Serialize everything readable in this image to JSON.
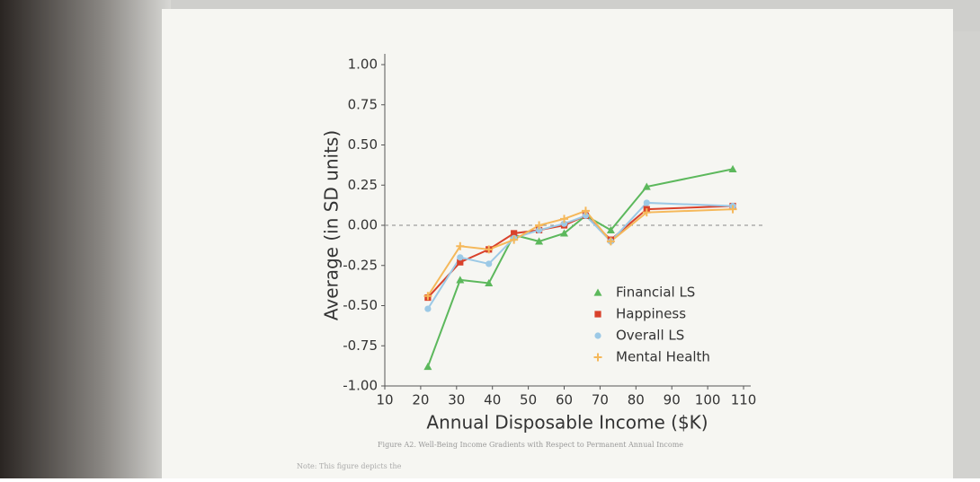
{
  "chart_data": {
    "type": "line",
    "x_label": "Annual Disposable Income ($K)",
    "y_label": "Average (in SD units)",
    "caption": "Figure A2. Well-Being Income Gradients with Respect to Permanent Annual Income",
    "note": "Note: This figure depicts the",
    "x": [
      22,
      31,
      39,
      46,
      53,
      60,
      66,
      73,
      83,
      107
    ],
    "series": [
      {
        "name": "Financial LS",
        "color": "#5cb85c",
        "marker": "triangle",
        "values": [
          -0.88,
          -0.34,
          -0.36,
          -0.06,
          -0.1,
          -0.05,
          0.06,
          -0.03,
          0.24,
          0.35
        ]
      },
      {
        "name": "Happiness",
        "color": "#d9412b",
        "marker": "square",
        "values": [
          -0.45,
          -0.23,
          -0.15,
          -0.05,
          -0.03,
          0.0,
          0.06,
          -0.09,
          0.1,
          0.12
        ]
      },
      {
        "name": "Overall LS",
        "color": "#9cc9e6",
        "marker": "circle",
        "values": [
          -0.52,
          -0.2,
          -0.24,
          -0.08,
          -0.03,
          0.01,
          0.06,
          -0.1,
          0.14,
          0.12
        ]
      },
      {
        "name": "Mental Health",
        "color": "#f5b85a",
        "marker": "plus",
        "values": [
          -0.44,
          -0.13,
          -0.15,
          -0.09,
          0.0,
          0.04,
          0.09,
          -0.1,
          0.08,
          0.1
        ]
      }
    ],
    "xlim": [
      10,
      112
    ],
    "ylim": [
      -1,
      1
    ],
    "xticks": [
      10,
      20,
      30,
      40,
      50,
      60,
      70,
      80,
      90,
      100,
      110
    ],
    "yticks": [
      {
        "value": 1,
        "label": "1.00"
      },
      {
        "value": 0.75,
        "label": "0.75"
      },
      {
        "value": 0.5,
        "label": "0.50"
      },
      {
        "value": 0.25,
        "label": "0.25"
      },
      {
        "value": 0,
        "label": "0.00"
      },
      {
        "value": -0.25,
        "label": "-0.25"
      },
      {
        "value": -0.5,
        "label": "-0.50"
      },
      {
        "value": -0.75,
        "label": "-0.75"
      },
      {
        "value": -1,
        "label": "-1.00"
      }
    ],
    "grid": false,
    "legend": "lower right"
  }
}
